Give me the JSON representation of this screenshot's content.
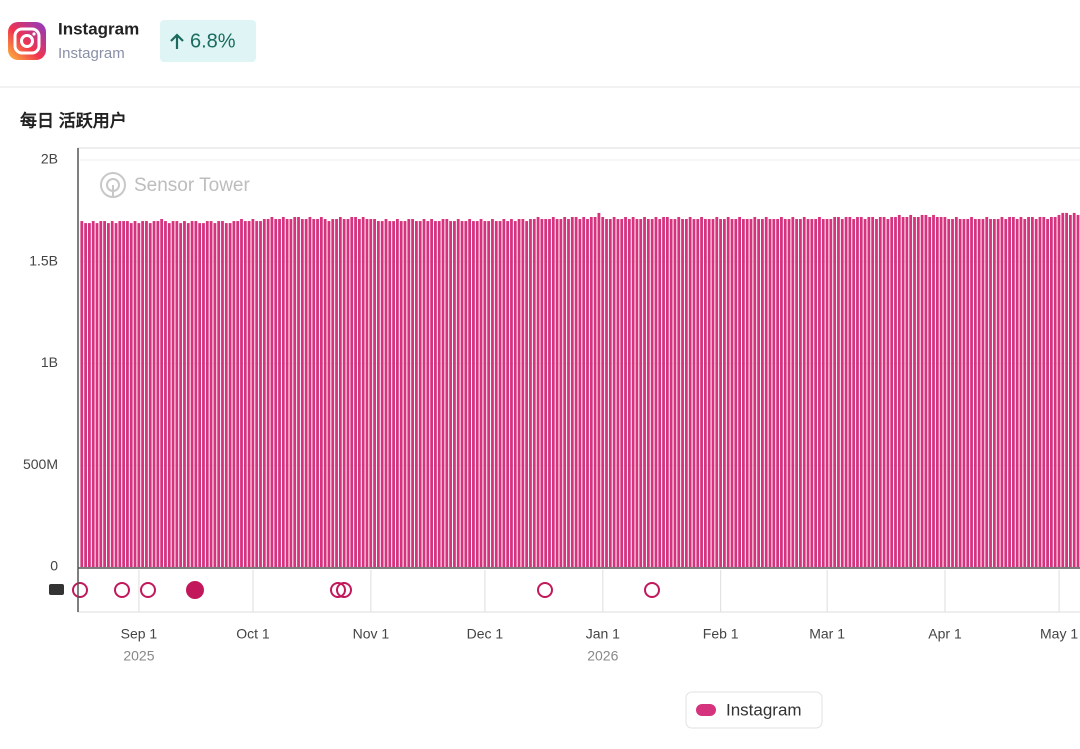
{
  "app": {
    "name": "Instagram",
    "subtitle": "Instagram",
    "change": "6.8%"
  },
  "chart_data": {
    "type": "bar",
    "title": "每日 活跃用户",
    "watermark": "Sensor Tower",
    "categories": [
      null,
      null,
      null,
      null,
      null,
      null,
      null,
      null,
      null,
      null,
      null,
      null,
      null,
      null,
      null,
      "Sep 1",
      null,
      null,
      null,
      null,
      null,
      null,
      null,
      null,
      null,
      null,
      null,
      null,
      null,
      null,
      null,
      null,
      null,
      null,
      null,
      null,
      null,
      null,
      null,
      null,
      null,
      null,
      null,
      null,
      null,
      "Oct 1",
      null,
      null,
      null,
      null,
      null,
      null,
      null,
      null,
      null,
      null,
      null,
      null,
      null,
      null,
      null,
      null,
      null,
      null,
      null,
      null,
      null,
      null,
      null,
      null,
      null,
      null,
      null,
      null,
      null,
      null,
      "Nov 1",
      null,
      null,
      null,
      null,
      null,
      null,
      null,
      null,
      null,
      null,
      null,
      null,
      null,
      null,
      null,
      null,
      null,
      null,
      null,
      null,
      null,
      null,
      null,
      null,
      null,
      null,
      null,
      null,
      null,
      "Dec 1",
      null,
      null,
      null,
      null,
      null,
      null,
      null,
      null,
      null,
      null,
      null,
      null,
      null,
      null,
      null,
      null,
      null,
      null,
      null,
      null,
      null,
      null,
      null,
      null,
      null,
      null,
      null,
      null,
      null,
      null,
      "Jan 1",
      null,
      null,
      null,
      null,
      null,
      null,
      null,
      null,
      null,
      null,
      null,
      null,
      null,
      null,
      null,
      null,
      null,
      null,
      null,
      null,
      null,
      null,
      null,
      null,
      null,
      null,
      null,
      null,
      null,
      null,
      "Feb 1",
      null,
      null,
      null,
      null,
      null,
      null,
      null,
      null,
      null,
      null,
      null,
      null,
      null,
      null,
      null,
      null,
      null,
      null,
      null,
      null,
      null,
      null,
      null,
      null,
      null,
      null,
      null,
      "Mar 1",
      null,
      null,
      null,
      null,
      null,
      null,
      null,
      null,
      null,
      null,
      null,
      null,
      null,
      null,
      null,
      null,
      null,
      null,
      null,
      null,
      null,
      null,
      null,
      null,
      null,
      null,
      null,
      null,
      null,
      null,
      "Apr 1",
      null,
      null,
      null,
      null,
      null,
      null,
      null,
      null,
      null,
      null,
      null,
      null,
      null,
      null,
      null,
      null,
      null,
      null,
      null,
      null,
      null,
      null,
      null,
      null,
      null,
      null,
      null,
      null,
      null,
      "May 1",
      null,
      null,
      null,
      null,
      null
    ],
    "year_labels": [
      {
        "category": "Sep 1",
        "label": "2025"
      },
      {
        "category": "Jan 1",
        "label": "2026"
      }
    ],
    "series": [
      {
        "name": "Instagram",
        "color": "#d6337f",
        "values": [
          1700000000.0,
          1690000000.0,
          1690000000.0,
          1700000000.0,
          1690000000.0,
          1700000000.0,
          1700000000.0,
          1690000000.0,
          1700000000.0,
          1690000000.0,
          1700000000.0,
          1700000000.0,
          1700000000.0,
          1690000000.0,
          1700000000.0,
          1690000000.0,
          1700000000.0,
          1700000000.0,
          1690000000.0,
          1700000000.0,
          1700000000.0,
          1710000000.0,
          1700000000.0,
          1690000000.0,
          1700000000.0,
          1700000000.0,
          1690000000.0,
          1700000000.0,
          1690000000.0,
          1700000000.0,
          1700000000.0,
          1690000000.0,
          1690000000.0,
          1700000000.0,
          1700000000.0,
          1690000000.0,
          1700000000.0,
          1700000000.0,
          1690000000.0,
          1690000000.0,
          1700000000.0,
          1700000000.0,
          1710000000.0,
          1700000000.0,
          1700000000.0,
          1710000000.0,
          1700000000.0,
          1700000000.0,
          1710000000.0,
          1710000000.0,
          1720000000.0,
          1710000000.0,
          1710000000.0,
          1720000000.0,
          1710000000.0,
          1710000000.0,
          1720000000.0,
          1720000000.0,
          1710000000.0,
          1710000000.0,
          1720000000.0,
          1710000000.0,
          1710000000.0,
          1720000000.0,
          1710000000.0,
          1700000000.0,
          1710000000.0,
          1710000000.0,
          1720000000.0,
          1710000000.0,
          1710000000.0,
          1720000000.0,
          1720000000.0,
          1710000000.0,
          1720000000.0,
          1710000000.0,
          1710000000.0,
          1710000000.0,
          1700000000.0,
          1700000000.0,
          1710000000.0,
          1700000000.0,
          1700000000.0,
          1710000000.0,
          1700000000.0,
          1700000000.0,
          1710000000.0,
          1710000000.0,
          1700000000.0,
          1700000000.0,
          1710000000.0,
          1700000000.0,
          1710000000.0,
          1700000000.0,
          1700000000.0,
          1710000000.0,
          1710000000.0,
          1700000000.0,
          1700000000.0,
          1710000000.0,
          1700000000.0,
          1700000000.0,
          1710000000.0,
          1700000000.0,
          1700000000.0,
          1710000000.0,
          1700000000.0,
          1700000000.0,
          1710000000.0,
          1700000000.0,
          1700000000.0,
          1710000000.0,
          1700000000.0,
          1710000000.0,
          1700000000.0,
          1710000000.0,
          1710000000.0,
          1700000000.0,
          1710000000.0,
          1710000000.0,
          1720000000.0,
          1710000000.0,
          1710000000.0,
          1710000000.0,
          1720000000.0,
          1710000000.0,
          1710000000.0,
          1720000000.0,
          1710000000.0,
          1720000000.0,
          1720000000.0,
          1710000000.0,
          1720000000.0,
          1710000000.0,
          1720000000.0,
          1720000000.0,
          1740000000.0,
          1720000000.0,
          1710000000.0,
          1710000000.0,
          1720000000.0,
          1710000000.0,
          1710000000.0,
          1720000000.0,
          1710000000.0,
          1720000000.0,
          1710000000.0,
          1710000000.0,
          1720000000.0,
          1710000000.0,
          1710000000.0,
          1720000000.0,
          1710000000.0,
          1720000000.0,
          1720000000.0,
          1710000000.0,
          1710000000.0,
          1720000000.0,
          1710000000.0,
          1710000000.0,
          1720000000.0,
          1710000000.0,
          1710000000.0,
          1720000000.0,
          1710000000.0,
          1710000000.0,
          1710000000.0,
          1720000000.0,
          1710000000.0,
          1710000000.0,
          1720000000.0,
          1710000000.0,
          1710000000.0,
          1720000000.0,
          1710000000.0,
          1710000000.0,
          1710000000.0,
          1720000000.0,
          1710000000.0,
          1710000000.0,
          1720000000.0,
          1710000000.0,
          1710000000.0,
          1710000000.0,
          1720000000.0,
          1710000000.0,
          1710000000.0,
          1720000000.0,
          1710000000.0,
          1710000000.0,
          1720000000.0,
          1710000000.0,
          1710000000.0,
          1710000000.0,
          1720000000.0,
          1710000000.0,
          1710000000.0,
          1710000000.0,
          1720000000.0,
          1720000000.0,
          1710000000.0,
          1720000000.0,
          1720000000.0,
          1710000000.0,
          1720000000.0,
          1720000000.0,
          1710000000.0,
          1720000000.0,
          1720000000.0,
          1710000000.0,
          1720000000.0,
          1720000000.0,
          1710000000.0,
          1720000000.0,
          1720000000.0,
          1730000000.0,
          1720000000.0,
          1720000000.0,
          1730000000.0,
          1720000000.0,
          1720000000.0,
          1730000000.0,
          1730000000.0,
          1720000000.0,
          1730000000.0,
          1720000000.0,
          1720000000.0,
          1720000000.0,
          1710000000.0,
          1710000000.0,
          1720000000.0,
          1710000000.0,
          1710000000.0,
          1710000000.0,
          1720000000.0,
          1710000000.0,
          1710000000.0,
          1710000000.0,
          1720000000.0,
          1710000000.0,
          1710000000.0,
          1710000000.0,
          1720000000.0,
          1710000000.0,
          1720000000.0,
          1720000000.0,
          1710000000.0,
          1720000000.0,
          1710000000.0,
          1720000000.0,
          1720000000.0,
          1710000000.0,
          1720000000.0,
          1720000000.0,
          1710000000.0,
          1720000000.0,
          1720000000.0,
          1730000000.0,
          1740000000.0,
          1740000000.0,
          1730000000.0,
          1740000000.0,
          1730000000.0
        ]
      }
    ],
    "ylim": [
      0,
      2000000000.0
    ],
    "yticks": [
      0,
      {
        "value": 500000000.0,
        "label": "500M"
      },
      {
        "value": 1000000000.0,
        "label": "1B"
      },
      {
        "value": 1500000000.0,
        "label": "1.5B"
      },
      {
        "value": 2000000000.0,
        "label": "2B"
      }
    ],
    "grid": true
  }
}
